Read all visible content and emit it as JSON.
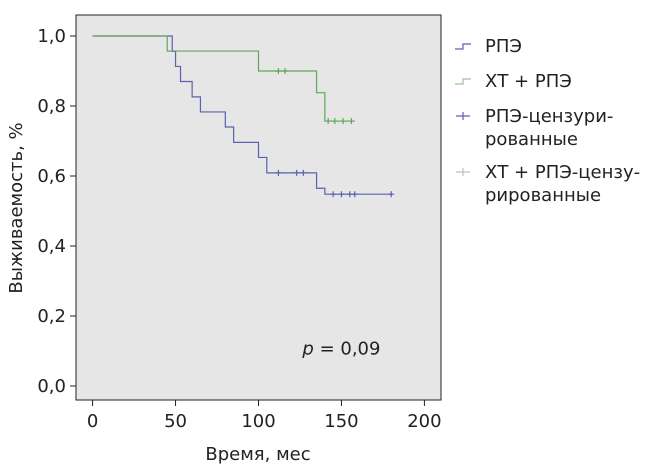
{
  "chart_data": {
    "type": "line",
    "step": true,
    "xlabel": "Время, мес",
    "ylabel": "Выживаемость, %",
    "xlim": [
      -10,
      210
    ],
    "ylim": [
      -0.04,
      1.06
    ],
    "x_ticks": [
      0,
      50,
      100,
      150,
      200
    ],
    "x_tick_labels": [
      "0",
      "50",
      "100",
      "150",
      "200"
    ],
    "y_ticks": [
      0.0,
      0.2,
      0.4,
      0.6,
      0.8,
      1.0
    ],
    "y_tick_labels": [
      "0,0",
      "0,2",
      "0,4",
      "0,6",
      "0,8",
      "1,0"
    ],
    "grid": false,
    "background": "#e6e6e6",
    "legend_position": "right",
    "annotation": {
      "italic": "p",
      "rest": " = 0,09",
      "x": 150,
      "y": 0.09
    },
    "series": [
      {
        "name": "РПЭ",
        "color": "#5a62b0",
        "steps": [
          [
            0,
            1.0
          ],
          [
            48,
            0.956
          ],
          [
            50,
            0.913
          ],
          [
            53,
            0.87
          ],
          [
            60,
            0.826
          ],
          [
            65,
            0.783
          ],
          [
            80,
            0.74
          ],
          [
            85,
            0.696
          ],
          [
            100,
            0.653
          ],
          [
            105,
            0.609
          ],
          [
            112,
            0.609
          ],
          [
            135,
            0.565
          ],
          [
            140,
            0.548
          ],
          [
            180,
            0.548
          ]
        ],
        "censored": [
          [
            112,
            0.609
          ],
          [
            123,
            0.609
          ],
          [
            127,
            0.609
          ],
          [
            145,
            0.548
          ],
          [
            150,
            0.548
          ],
          [
            155,
            0.548
          ],
          [
            158,
            0.548
          ],
          [
            180,
            0.548
          ]
        ]
      },
      {
        "name": "ХТ + РПЭ",
        "color": "#5fa85a",
        "steps": [
          [
            0,
            1.0
          ],
          [
            45,
            0.957
          ],
          [
            100,
            0.9
          ],
          [
            135,
            0.838
          ],
          [
            140,
            0.757
          ],
          [
            158,
            0.757
          ]
        ],
        "censored": [
          [
            112,
            0.9
          ],
          [
            116,
            0.9
          ],
          [
            142,
            0.757
          ],
          [
            146,
            0.757
          ],
          [
            151,
            0.757
          ],
          [
            156,
            0.757
          ]
        ]
      }
    ],
    "legend": [
      {
        "lines": [
          "РПЭ"
        ],
        "symbol": "step",
        "color": "#5a62b0"
      },
      {
        "lines": [
          "ХТ + РПЭ"
        ],
        "symbol": "step",
        "color": "#9fc49a"
      },
      {
        "lines": [
          "РПЭ-цензури-",
          "рованные"
        ],
        "symbol": "plus",
        "color": "#5a62b0"
      },
      {
        "lines": [
          "ХТ + РПЭ-цензу-",
          "рированные"
        ],
        "symbol": "plus",
        "color": "#c0c0c0"
      }
    ]
  }
}
